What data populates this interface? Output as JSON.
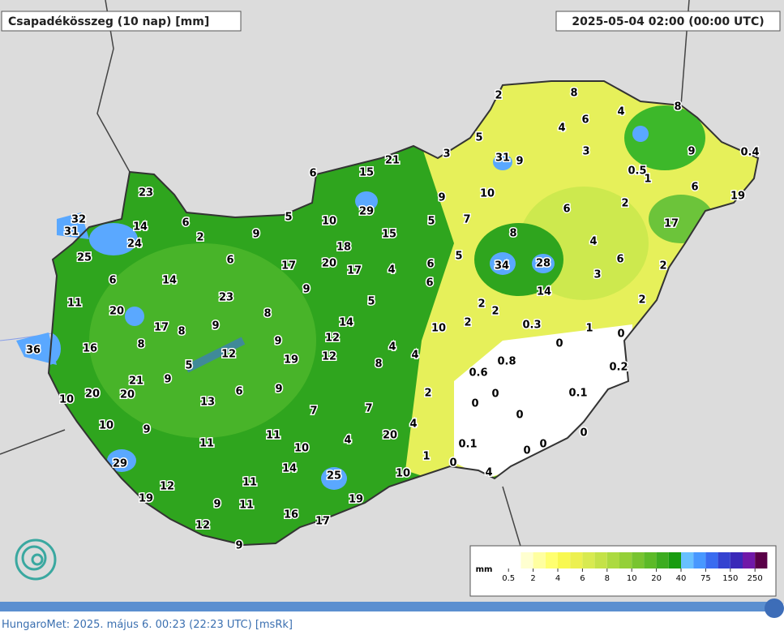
{
  "header": {
    "title": "Csapadékösszeg (10 nap) [mm]",
    "timestamp": "2025-05-04 02:00 (00:00 UTC)"
  },
  "stations": [
    2,
    8,
    4,
    8,
    4,
    6,
    5,
    3,
    31,
    9,
    3,
    9,
    0.4,
    21,
    6,
    15,
    0.5,
    1,
    10,
    9,
    6,
    19,
    23,
    2,
    6,
    29,
    5,
    10,
    5,
    7,
    17,
    32,
    6,
    14,
    31,
    9,
    2,
    15,
    8,
    24,
    4,
    18,
    25,
    6,
    17,
    20,
    17,
    4,
    5,
    6,
    34,
    28,
    6,
    2,
    3,
    6,
    14,
    6,
    9,
    23,
    14,
    11,
    5,
    2,
    2,
    2,
    20,
    8,
    17,
    8,
    9,
    14,
    2,
    10,
    0.3,
    1,
    0,
    36,
    16,
    8,
    9,
    12,
    12,
    4,
    4,
    0,
    19,
    12,
    8,
    5,
    0.8,
    0.2,
    0.6,
    21,
    9,
    6,
    9,
    2,
    0,
    0.1,
    10,
    20,
    20,
    13,
    0,
    7,
    7,
    0,
    10,
    9,
    4,
    11,
    20,
    0,
    11,
    10,
    4,
    0.1,
    1,
    0,
    0,
    29,
    14,
    0,
    25,
    10,
    4,
    12,
    11,
    19,
    9,
    11,
    19,
    16,
    17,
    12,
    9
  ],
  "legend": {
    "unit": "mm",
    "labels": [
      0.5,
      2,
      4,
      6,
      8,
      10,
      20,
      40,
      75,
      150,
      250
    ],
    "colors": [
      "#ffffff",
      "#ffffff",
      "#ffffd0",
      "#ffffa0",
      "#ffff70",
      "#f8f850",
      "#ecf050",
      "#d8ea50",
      "#c4e248",
      "#acda40",
      "#94d038",
      "#78c430",
      "#5cba28",
      "#3cac20",
      "#189c10",
      "#68c0ff",
      "#4898ff",
      "#3a6cf0",
      "#3442d0",
      "#3a28b8",
      "#7018a8",
      "#5a0048"
    ]
  },
  "footer": "HungaroMet: 2025. május 6. 00:23 (22:23  UTC)  [msRk]"
}
